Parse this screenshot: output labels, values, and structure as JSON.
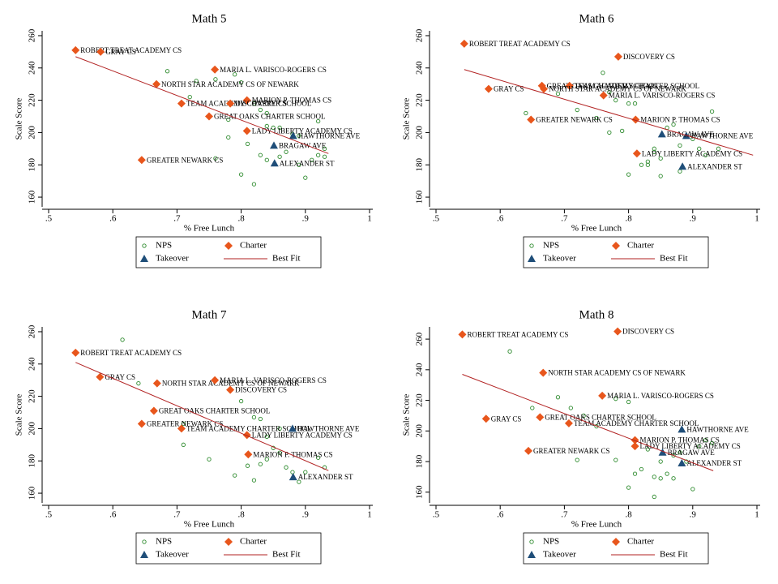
{
  "chart_data": [
    {
      "type": "scatter",
      "title": "Math 5",
      "xlabel": "% Free Lunch",
      "ylabel": "Scale Score",
      "xlim": [
        0.5,
        1
      ],
      "xticks": [
        {
          "value": 0.5,
          "label": ".5"
        },
        {
          "value": 0.6,
          "label": ".6"
        },
        {
          "value": 0.7,
          "label": ".7"
        },
        {
          "value": 0.8,
          "label": ".8"
        },
        {
          "value": 0.9,
          "label": ".9"
        },
        1
      ],
      "ylim": [
        154,
        263
      ],
      "yticks": [
        160,
        180,
        200,
        220,
        240,
        260
      ],
      "series": [
        {
          "name": "NPS",
          "color": "#2e8b2e",
          "marker": "circle",
          "x": [
            0.685,
            0.73,
            0.76,
            0.79,
            0.8,
            0.72,
            0.82,
            0.83,
            0.84,
            0.78,
            0.85,
            0.84,
            0.86,
            0.88,
            0.92,
            0.89,
            0.78,
            0.81,
            0.8,
            0.82,
            0.83,
            0.84,
            0.86,
            0.87,
            0.89,
            0.91,
            0.92,
            0.93,
            0.9,
            0.76,
            0.93
          ],
          "values": [
            238,
            232,
            233,
            236,
            231,
            222,
            218,
            214,
            212,
            208,
            203,
            204,
            203,
            199,
            207,
            198,
            197,
            193,
            174,
            168,
            186,
            183,
            185,
            188,
            180,
            183,
            186,
            185,
            172,
            184,
            190
          ]
        },
        {
          "name": "Charter",
          "color": "#e8561c",
          "marker": "diamond",
          "x": [
            0.542,
            0.581,
            0.759,
            0.668,
            0.809,
            0.707,
            0.783,
            0.75,
            0.809,
            0.645
          ],
          "values": [
            251,
            250,
            239,
            230,
            220,
            218,
            218,
            210,
            201,
            183
          ],
          "labels": [
            "ROBERT TREAT ACADEMY CS",
            "GRAY CS",
            "MARIA L. VARISCO-ROGERS CS",
            "NORTH STAR ACADEMY CS OF NEWARK",
            "MARION P. THOMAS CS",
            "TEAM ACADEMY CHARTER SCHOOL",
            "DISCOVERY CS",
            "GREAT OAKS CHARTER SCHOOL",
            "LADY LIBERTY ACADEMY CS",
            "GREATER NEWARK CS"
          ]
        },
        {
          "name": "Takeover",
          "color": "#1f4e79",
          "marker": "triangle",
          "x": [
            0.881,
            0.851,
            0.852
          ],
          "values": [
            198,
            192,
            181
          ],
          "labels": [
            "HAWTHORNE AVE",
            "BRAGAW AVE",
            "ALEXANDER ST"
          ]
        },
        {
          "name": "Best Fit",
          "color": "#b22222",
          "marker": "line",
          "x": [
            0.542,
            0.936
          ],
          "values": [
            247,
            187
          ]
        }
      ]
    },
    {
      "type": "scatter",
      "title": "Math 6",
      "xlabel": "% Free Lunch",
      "ylabel": "Scale Score",
      "xlim": [
        0.5,
        1
      ],
      "xticks": [
        {
          "value": 0.5,
          "label": ".5"
        },
        {
          "value": 0.6,
          "label": ".6"
        },
        {
          "value": 0.7,
          "label": ".7"
        },
        {
          "value": 0.8,
          "label": ".8"
        },
        {
          "value": 0.9,
          "label": ".9"
        },
        1
      ],
      "ylim": [
        154,
        263
      ],
      "yticks": [
        160,
        180,
        200,
        220,
        240,
        260
      ],
      "series": [
        {
          "name": "NPS",
          "color": "#2e8b2e",
          "marker": "circle",
          "x": [
            0.64,
            0.69,
            0.72,
            0.76,
            0.77,
            0.78,
            0.8,
            0.81,
            0.75,
            0.77,
            0.79,
            0.8,
            0.82,
            0.83,
            0.84,
            0.85,
            0.86,
            0.87,
            0.88,
            0.9,
            0.91,
            0.93,
            0.92,
            0.94,
            0.85,
            0.83,
            0.88,
            0.84
          ],
          "values": [
            212,
            224,
            214,
            237,
            225,
            220,
            218,
            218,
            209,
            200,
            201,
            174,
            180,
            182,
            188,
            184,
            203,
            205,
            192,
            196,
            190,
            213,
            186,
            190,
            173,
            180,
            176,
            190
          ]
        },
        {
          "name": "Charter",
          "color": "#e8561c",
          "marker": "diamond",
          "x": [
            0.544,
            0.784,
            0.582,
            0.665,
            0.708,
            0.668,
            0.761,
            0.811,
            0.648,
            0.813
          ],
          "values": [
            255,
            247,
            227,
            229,
            229,
            227,
            223,
            208,
            208,
            187
          ],
          "labels": [
            "ROBERT TREAT ACADEMY CS",
            "DISCOVERY CS",
            "GRAY CS",
            "GREAT OAKS CHARTER SCHOOL",
            "TEAM ACADEMY CHARTER SCHOOL",
            "NORTH STAR ACADEMY CS OF NEWARK",
            "MARIA L. VARISCO-ROGERS CS",
            "MARION P. THOMAS CS",
            "GREATER NEWARK CS",
            "LADY LIBERTY ACADEMY CS"
          ]
        },
        {
          "name": "Takeover",
          "color": "#1f4e79",
          "marker": "triangle",
          "x": [
            0.89,
            0.852,
            0.884
          ],
          "values": [
            198,
            199,
            179
          ],
          "labels": [
            "HAWTHORNE AVE",
            "BRAGAW AVE",
            "ALEXANDER ST"
          ]
        },
        {
          "name": "Best Fit",
          "color": "#b22222",
          "marker": "line",
          "x": [
            0.544,
            0.994
          ],
          "values": [
            239,
            186
          ]
        }
      ]
    },
    {
      "type": "scatter",
      "title": "Math 7",
      "xlabel": "% Free Lunch",
      "ylabel": "Scale Score",
      "xlim": [
        0.5,
        1
      ],
      "xticks": [
        {
          "value": 0.5,
          "label": ".5"
        },
        {
          "value": 0.6,
          "label": ".6"
        },
        {
          "value": 0.7,
          "label": ".7"
        },
        {
          "value": 0.8,
          "label": ".8"
        },
        {
          "value": 0.9,
          "label": ".9"
        },
        1
      ],
      "ylim": [
        154,
        263
      ],
      "yticks": [
        160,
        180,
        200,
        220,
        240,
        260
      ],
      "series": [
        {
          "name": "NPS",
          "color": "#2e8b2e",
          "marker": "circle",
          "x": [
            0.615,
            0.64,
            0.71,
            0.71,
            0.75,
            0.79,
            0.8,
            0.82,
            0.83,
            0.84,
            0.85,
            0.86,
            0.87,
            0.82,
            0.83,
            0.88,
            0.89,
            0.9,
            0.92,
            0.93,
            0.84,
            0.86,
            0.81
          ],
          "values": [
            255,
            228,
            203,
            190,
            181,
            171,
            217,
            207,
            206,
            195,
            188,
            185,
            176,
            168,
            178,
            173,
            167,
            173,
            182,
            176,
            181,
            200,
            177
          ]
        },
        {
          "name": "Charter",
          "color": "#e8561c",
          "marker": "diamond",
          "x": [
            0.542,
            0.58,
            0.669,
            0.759,
            0.783,
            0.664,
            0.645,
            0.707,
            0.809,
            0.811
          ],
          "values": [
            247,
            232,
            228,
            230,
            224,
            211,
            203,
            200,
            196,
            184
          ],
          "labels": [
            "ROBERT TREAT ACADEMY CS",
            "GRAY CS",
            "NORTH STAR ACADEMY CS OF NEWARK",
            "MARIA L. VARISCO-ROGERS CS",
            "DISCOVERY CS",
            "GREAT OAKS CHARTER SCHOOL",
            "GREATER NEWARK CS",
            "TEAM ACADEMY CHARTER SCHOOL",
            "LADY LIBERTY ACADEMY CS",
            "MARION P. THOMAS CS"
          ]
        },
        {
          "name": "Takeover",
          "color": "#1f4e79",
          "marker": "triangle",
          "x": [
            0.88,
            0.881
          ],
          "values": [
            200,
            170
          ],
          "labels": [
            "HAWTHORNE AVE",
            "ALEXANDER ST"
          ]
        },
        {
          "name": "Best Fit",
          "color": "#b22222",
          "marker": "line",
          "x": [
            0.542,
            0.936
          ],
          "values": [
            241,
            174
          ]
        }
      ]
    },
    {
      "type": "scatter",
      "title": "Math 8",
      "xlabel": "% Free Lunch",
      "ylabel": "Scale Score",
      "xlim": [
        0.5,
        1
      ],
      "xticks": [
        {
          "value": 0.5,
          "label": ".5"
        },
        {
          "value": 0.6,
          "label": ".6"
        },
        {
          "value": 0.7,
          "label": ".7"
        },
        {
          "value": 0.8,
          "label": ".8"
        },
        {
          "value": 0.9,
          "label": ".9"
        },
        1
      ],
      "ylim": [
        153,
        268
      ],
      "yticks": [
        160,
        180,
        200,
        220,
        240,
        260
      ],
      "series": [
        {
          "name": "NPS",
          "color": "#2e8b2e",
          "marker": "circle",
          "x": [
            0.615,
            0.65,
            0.69,
            0.71,
            0.73,
            0.75,
            0.72,
            0.78,
            0.8,
            0.81,
            0.82,
            0.83,
            0.84,
            0.84,
            0.85,
            0.86,
            0.87,
            0.88,
            0.89,
            0.9,
            0.91,
            0.92,
            0.93,
            0.8,
            0.78,
            0.85,
            0.87
          ],
          "values": [
            252,
            215,
            222,
            215,
            210,
            203,
            181,
            181,
            163,
            172,
            175,
            188,
            157,
            170,
            169,
            172,
            184,
            186,
            180,
            162,
            190,
            194,
            192,
            219,
            221,
            180,
            169
          ]
        },
        {
          "name": "Charter",
          "color": "#e8561c",
          "marker": "diamond",
          "x": [
            0.541,
            0.783,
            0.667,
            0.759,
            0.578,
            0.662,
            0.707,
            0.81,
            0.81,
            0.644
          ],
          "values": [
            263,
            265,
            238,
            223,
            208,
            209,
            205,
            194,
            190,
            187
          ],
          "labels": [
            "ROBERT TREAT ACADEMY CS",
            "DISCOVERY CS",
            "NORTH STAR ACADEMY CS OF NEWARK",
            "MARIA L. VARISCO-ROGERS CS",
            "GRAY CS",
            "GREAT OAKS CHARTER SCHOOL",
            "TEAM ACADEMY CHARTER SCHOOL",
            "MARION P. THOMAS CS",
            "LADY LIBERTY ACADEMY CS",
            "GREATER NEWARK CS"
          ]
        },
        {
          "name": "Takeover",
          "color": "#1f4e79",
          "marker": "triangle",
          "x": [
            0.883,
            0.853,
            0.883
          ],
          "values": [
            201,
            186,
            179
          ],
          "labels": [
            "HAWTHORNE AVE",
            "BRAGAW AVE",
            "ALEXANDER ST"
          ]
        },
        {
          "name": "Best Fit",
          "color": "#b22222",
          "marker": "line",
          "x": [
            0.541,
            0.932
          ],
          "values": [
            237,
            174
          ]
        }
      ]
    }
  ]
}
